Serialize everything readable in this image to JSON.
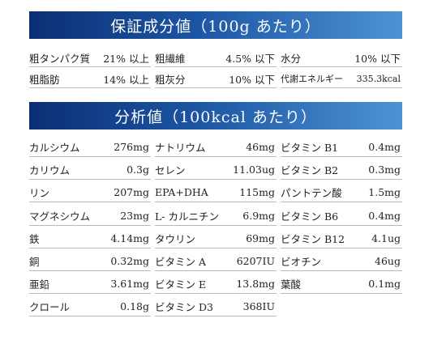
{
  "section1": {
    "title": "保証成分値（100g あたり）",
    "items": [
      {
        "label": "粗タンパク質",
        "value": "21% 以上"
      },
      {
        "label": "粗繊維",
        "value": "4.5% 以下"
      },
      {
        "label": "水分",
        "value": "10% 以下"
      },
      {
        "label": "粗脂肪",
        "value": "14% 以上"
      },
      {
        "label": "粗灰分",
        "value": "10% 以下"
      },
      {
        "label": "代謝エネルギー",
        "value": "335.3kcal"
      }
    ]
  },
  "section2": {
    "title": "分析値（100kcal あたり）",
    "items": [
      {
        "label": "カルシウム",
        "value": "276mg"
      },
      {
        "label": "ナトリウム",
        "value": "46mg"
      },
      {
        "label": "ビタミン B1",
        "value": "0.4mg"
      },
      {
        "label": "カリウム",
        "value": "0.3g"
      },
      {
        "label": "セレン",
        "value": "11.03ug"
      },
      {
        "label": "ビタミン B2",
        "value": "0.3mg"
      },
      {
        "label": "リン",
        "value": "207mg"
      },
      {
        "label": "EPA+DHA",
        "value": "115mg"
      },
      {
        "label": "パントテン酸",
        "value": "1.5mg"
      },
      {
        "label": "マグネシウム",
        "value": "23mg"
      },
      {
        "label": "L- カルニチン",
        "value": "6.9mg"
      },
      {
        "label": "ビタミン B6",
        "value": "0.4mg"
      },
      {
        "label": "鉄",
        "value": "4.14mg"
      },
      {
        "label": "タウリン",
        "value": "69mg"
      },
      {
        "label": "ビタミン B12",
        "value": "4.1ug"
      },
      {
        "label": "銅",
        "value": "0.32mg"
      },
      {
        "label": "ビタミン A",
        "value": "6207IU"
      },
      {
        "label": "ビオチン",
        "value": "46ug"
      },
      {
        "label": "亜鉛",
        "value": "3.61mg"
      },
      {
        "label": "ビタミン E",
        "value": "13.8mg"
      },
      {
        "label": "葉酸",
        "value": "0.1mg"
      },
      {
        "label": "クロール",
        "value": "0.18g"
      },
      {
        "label": "ビタミン D3",
        "value": "368IU"
      }
    ]
  }
}
